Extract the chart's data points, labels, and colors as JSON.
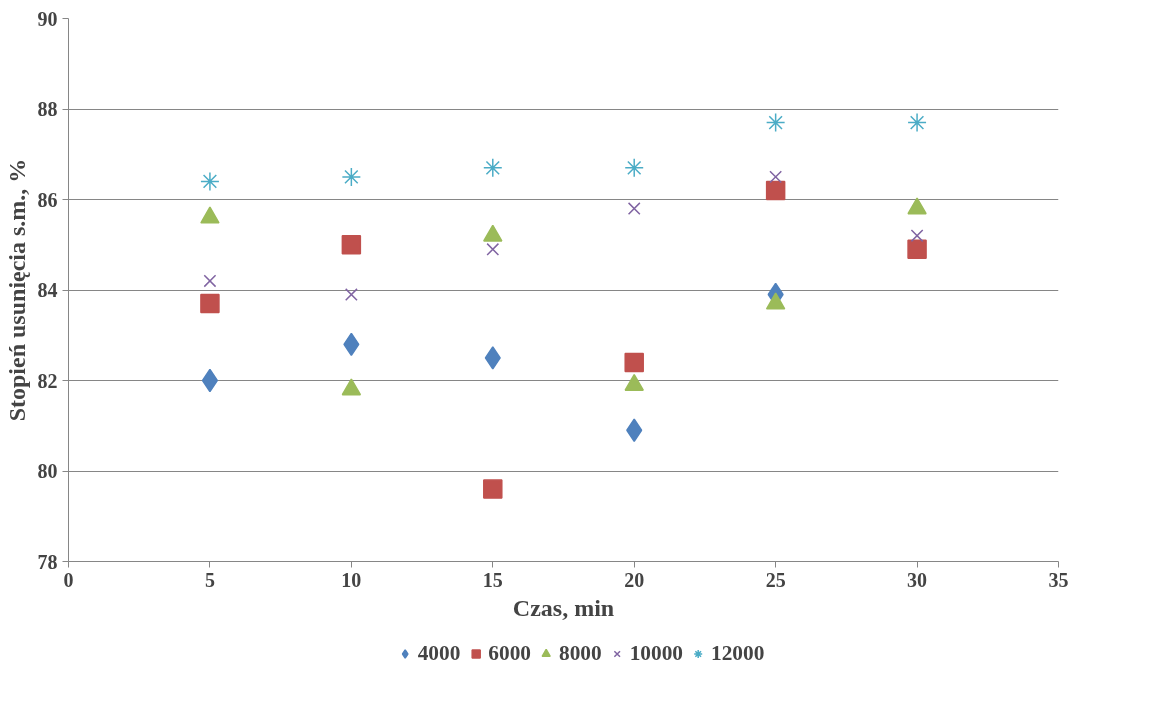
{
  "chart_data": {
    "type": "scatter",
    "xlabel": "Czas, min",
    "ylabel": "Stopień usunięcia s.m., %",
    "xlim": [
      0,
      35
    ],
    "xticks": [
      0,
      5,
      10,
      15,
      20,
      25,
      30,
      35
    ],
    "ylim": [
      78,
      90
    ],
    "yticks": [
      78,
      80,
      82,
      84,
      86,
      88,
      90
    ],
    "grid": "y",
    "legend": "bottom",
    "series": [
      {
        "name": "4000",
        "color": "#4f81bd",
        "marker": "diamond",
        "x": [
          5,
          10,
          15,
          20,
          25
        ],
        "values": [
          82.0,
          82.8,
          82.5,
          80.9,
          83.9
        ]
      },
      {
        "name": "6000",
        "color": "#c0504d",
        "marker": "square",
        "x": [
          5,
          10,
          15,
          20,
          25,
          30
        ],
        "values": [
          83.7,
          85.0,
          79.6,
          82.4,
          86.2,
          84.9
        ]
      },
      {
        "name": "8000",
        "color": "#9bbb59",
        "marker": "triangle",
        "x": [
          5,
          10,
          15,
          20,
          25,
          30
        ],
        "values": [
          85.6,
          81.8,
          85.2,
          81.9,
          83.7,
          85.8
        ]
      },
      {
        "name": "10000",
        "color": "#8064a2",
        "marker": "cross",
        "x": [
          5,
          10,
          15,
          20,
          25,
          30
        ],
        "values": [
          84.2,
          83.9,
          84.9,
          85.8,
          86.5,
          85.2
        ]
      },
      {
        "name": "12000",
        "color": "#4bacc6",
        "x": [
          5,
          10,
          15,
          20,
          25,
          30
        ],
        "values": [
          86.4,
          86.5,
          86.7,
          86.7,
          87.7,
          87.7
        ]
      }
    ]
  }
}
